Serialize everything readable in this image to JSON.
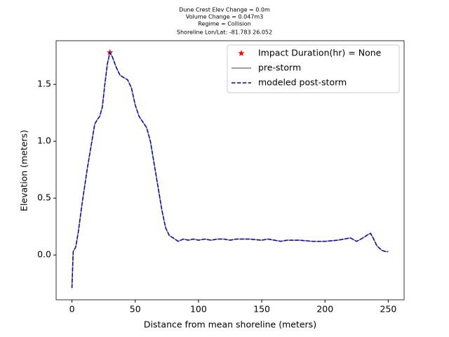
{
  "chart_data": {
    "type": "line",
    "title": [
      "Dune Crest Elev Change = 0.0m",
      "Volume Change = 0.047m3",
      "Regime = Collision",
      "Shoreline Lon/Lat: -81.783 26.052"
    ],
    "x_label": "Distance from mean shoreline (meters)",
    "y_label": "Elevation (meters)",
    "x": [
      0,
      1,
      3,
      5,
      8,
      12,
      15,
      18,
      20,
      22,
      24,
      26,
      28,
      30,
      32,
      35,
      38,
      41,
      44,
      47,
      50,
      53,
      56,
      59,
      62,
      65,
      68,
      71,
      74,
      77,
      80,
      84,
      88,
      92,
      96,
      100,
      105,
      110,
      115,
      120,
      125,
      130,
      140,
      150,
      155,
      160,
      165,
      170,
      180,
      190,
      200,
      210,
      220,
      225,
      230,
      234,
      236,
      238,
      241,
      245,
      248,
      250
    ],
    "series": [
      {
        "name": "Impact Duration(hr) = None",
        "style": "marker",
        "color": "#ff0000",
        "x": [
          30
        ],
        "values": [
          1.78
        ]
      },
      {
        "name": "pre-storm",
        "style": "solid",
        "color": "#808080",
        "values": [
          -0.29,
          0.03,
          0.07,
          0.2,
          0.45,
          0.75,
          0.95,
          1.15,
          1.19,
          1.22,
          1.3,
          1.5,
          1.68,
          1.78,
          1.74,
          1.65,
          1.58,
          1.56,
          1.54,
          1.47,
          1.32,
          1.22,
          1.17,
          1.12,
          1.0,
          0.8,
          0.6,
          0.4,
          0.24,
          0.17,
          0.15,
          0.12,
          0.14,
          0.13,
          0.14,
          0.13,
          0.14,
          0.13,
          0.14,
          0.14,
          0.13,
          0.14,
          0.14,
          0.13,
          0.14,
          0.13,
          0.12,
          0.13,
          0.13,
          0.12,
          0.12,
          0.13,
          0.15,
          0.12,
          0.15,
          0.18,
          0.19,
          0.15,
          0.08,
          0.04,
          0.03,
          0.03
        ]
      },
      {
        "name": "modeled post-storm",
        "style": "dashed",
        "color": "#0000cc",
        "values": [
          -0.29,
          0.03,
          0.07,
          0.2,
          0.45,
          0.75,
          0.95,
          1.15,
          1.19,
          1.22,
          1.3,
          1.5,
          1.68,
          1.78,
          1.74,
          1.65,
          1.58,
          1.56,
          1.54,
          1.47,
          1.32,
          1.22,
          1.17,
          1.12,
          1.0,
          0.8,
          0.6,
          0.4,
          0.24,
          0.17,
          0.15,
          0.12,
          0.14,
          0.13,
          0.14,
          0.13,
          0.14,
          0.13,
          0.14,
          0.14,
          0.13,
          0.14,
          0.14,
          0.13,
          0.14,
          0.13,
          0.12,
          0.13,
          0.13,
          0.12,
          0.12,
          0.13,
          0.15,
          0.12,
          0.15,
          0.18,
          0.19,
          0.15,
          0.08,
          0.04,
          0.03,
          0.03
        ]
      }
    ],
    "xlim": [
      -12.5,
      262.5
    ],
    "xticks": [
      0,
      50,
      100,
      150,
      200,
      250
    ],
    "ylim": [
      -0.394,
      1.884
    ],
    "yticks": [
      {
        "value": 0,
        "label": "0.0"
      },
      0.5,
      {
        "value": 1,
        "label": "1.0"
      },
      1.5
    ],
    "grid": false,
    "legend": "upper right"
  }
}
